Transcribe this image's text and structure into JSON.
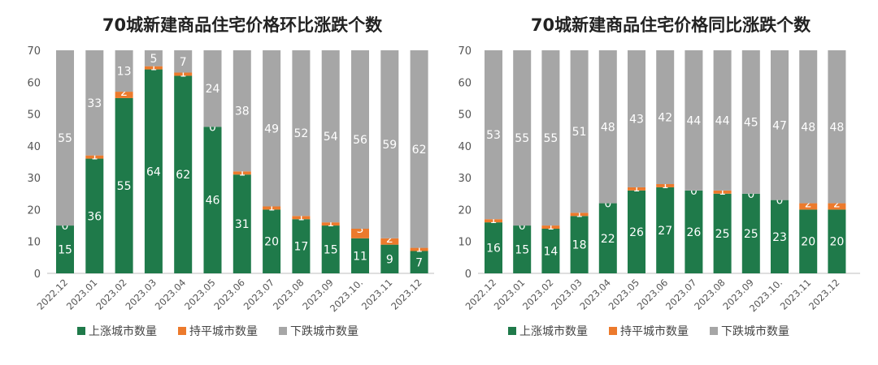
{
  "legend_colors": {
    "up": "#1f7a4a",
    "flat": "#ec7a2c",
    "down": "#a6a6a6"
  },
  "chart_data": [
    {
      "type": "bar",
      "stacked": true,
      "title": "70城新建商品住宅价格环比涨跌个数",
      "categories": [
        "2022.12",
        "2023.01",
        "2023.02",
        "2023.03",
        "2023.04",
        "2023.05",
        "2023.06",
        "2023.07",
        "2023.08",
        "2023.09",
        "2023.10.",
        "2023.11",
        "2023.12"
      ],
      "ylim": [
        0,
        70
      ],
      "yticks": [
        0,
        10,
        20,
        30,
        40,
        50,
        60,
        70
      ],
      "grid": false,
      "legend_position": "bottom",
      "series": [
        {
          "name": "上涨城市数量",
          "color": "#1f7a4a",
          "values": [
            15,
            36,
            55,
            64,
            62,
            46,
            31,
            20,
            17,
            15,
            11,
            9,
            7
          ]
        },
        {
          "name": "持平城市数量",
          "color": "#ec7a2c",
          "values": [
            0,
            1,
            2,
            1,
            1,
            0,
            1,
            1,
            1,
            1,
            3,
            2,
            1
          ]
        },
        {
          "name": "下跌城市数量",
          "color": "#a6a6a6",
          "values": [
            55,
            33,
            13,
            5,
            7,
            24,
            38,
            49,
            52,
            54,
            56,
            59,
            62
          ]
        }
      ]
    },
    {
      "type": "bar",
      "stacked": true,
      "title": "70城新建商品住宅价格同比涨跌个数",
      "categories": [
        "2022.12",
        "2023.01",
        "2023.02",
        "2023.03",
        "2023.04",
        "2023.05",
        "2023.06",
        "2023.07",
        "2023.08",
        "2023.09",
        "2023.10.",
        "2023.11",
        "2023.12"
      ],
      "ylim": [
        0,
        70
      ],
      "yticks": [
        0,
        10,
        20,
        30,
        40,
        50,
        60,
        70
      ],
      "grid": false,
      "legend_position": "bottom",
      "series": [
        {
          "name": "上涨城市数量",
          "color": "#1f7a4a",
          "values": [
            16,
            15,
            14,
            18,
            22,
            26,
            27,
            26,
            25,
            25,
            23,
            20,
            20
          ]
        },
        {
          "name": "持平城市数量",
          "color": "#ec7a2c",
          "values": [
            1,
            0,
            1,
            1,
            0,
            1,
            1,
            0,
            1,
            0,
            0,
            2,
            2
          ]
        },
        {
          "name": "下跌城市数量",
          "color": "#a6a6a6",
          "values": [
            53,
            55,
            55,
            51,
            48,
            43,
            42,
            44,
            44,
            45,
            47,
            48,
            48
          ]
        }
      ]
    }
  ]
}
